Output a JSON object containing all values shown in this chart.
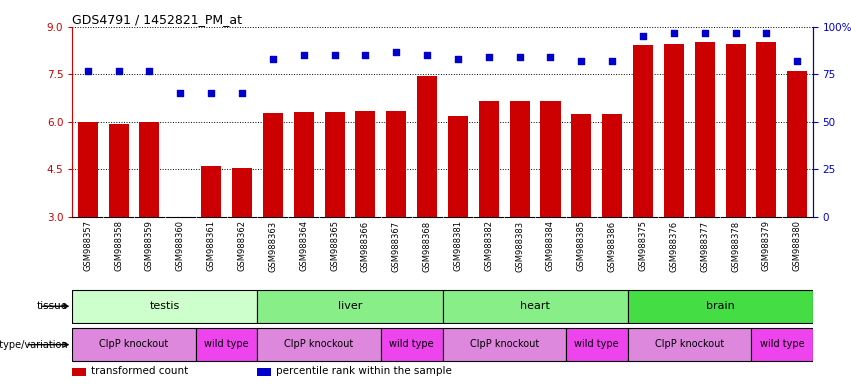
{
  "title": "GDS4791 / 1452821_PM_at",
  "samples": [
    "GSM988357",
    "GSM988358",
    "GSM988359",
    "GSM988360",
    "GSM988361",
    "GSM988362",
    "GSM988363",
    "GSM988364",
    "GSM988365",
    "GSM988366",
    "GSM988367",
    "GSM988368",
    "GSM988381",
    "GSM988382",
    "GSM988383",
    "GSM988384",
    "GSM988385",
    "GSM988386",
    "GSM988375",
    "GSM988376",
    "GSM988377",
    "GSM988378",
    "GSM988379",
    "GSM988380"
  ],
  "bar_values": [
    6.0,
    5.95,
    6.0,
    3.0,
    4.62,
    4.56,
    6.28,
    6.3,
    6.3,
    6.35,
    6.35,
    7.45,
    6.2,
    6.65,
    6.65,
    6.65,
    6.25,
    6.25,
    8.42,
    8.46,
    8.52,
    8.46,
    8.52,
    7.62
  ],
  "percentile_values": [
    77,
    77,
    77,
    65,
    65,
    65,
    83,
    85,
    85,
    85,
    87,
    85,
    83,
    84,
    84,
    84,
    82,
    82,
    95,
    97,
    97,
    97,
    97,
    82
  ],
  "ylim_left": [
    3,
    9
  ],
  "ylim_right": [
    0,
    100
  ],
  "yticks_left": [
    3,
    4.5,
    6,
    7.5,
    9
  ],
  "yticks_right": [
    0,
    25,
    50,
    75,
    100
  ],
  "bar_color": "#cc0000",
  "dot_color": "#0000cc",
  "bar_width": 0.65,
  "tissue_groups": [
    {
      "label": "testis",
      "start": 0,
      "end": 5,
      "color": "#ccffcc"
    },
    {
      "label": "liver",
      "start": 6,
      "end": 11,
      "color": "#88ee88"
    },
    {
      "label": "heart",
      "start": 12,
      "end": 17,
      "color": "#88ee88"
    },
    {
      "label": "brain",
      "start": 18,
      "end": 23,
      "color": "#44dd44"
    }
  ],
  "genotype_groups": [
    {
      "label": "ClpP knockout",
      "start": 0,
      "end": 3,
      "color": "#dd88dd"
    },
    {
      "label": "wild type",
      "start": 4,
      "end": 5,
      "color": "#ee44ee"
    },
    {
      "label": "ClpP knockout",
      "start": 6,
      "end": 9,
      "color": "#dd88dd"
    },
    {
      "label": "wild type",
      "start": 10,
      "end": 11,
      "color": "#ee44ee"
    },
    {
      "label": "ClpP knockout",
      "start": 12,
      "end": 15,
      "color": "#dd88dd"
    },
    {
      "label": "wild type",
      "start": 16,
      "end": 17,
      "color": "#ee44ee"
    },
    {
      "label": "ClpP knockout",
      "start": 18,
      "end": 21,
      "color": "#dd88dd"
    },
    {
      "label": "wild type",
      "start": 22,
      "end": 23,
      "color": "#ee44ee"
    }
  ],
  "legend_items": [
    {
      "label": "transformed count",
      "color": "#cc0000"
    },
    {
      "label": "percentile rank within the sample",
      "color": "#0000cc"
    }
  ],
  "xtick_bg_color": "#cccccc",
  "left_axis_color": "#cc0000",
  "right_axis_color": "#0000cc"
}
